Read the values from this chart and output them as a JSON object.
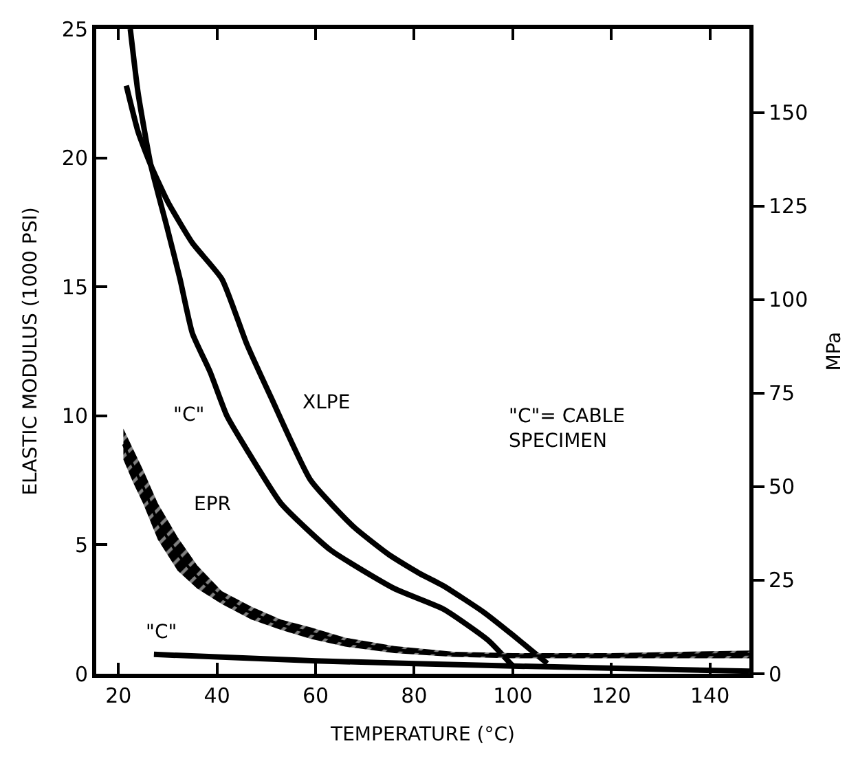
{
  "chart_data": {
    "type": "line",
    "xlabel": "TEMPERATURE (°C)",
    "ylabel": "ELASTIC MODULUS (1000 PSI)",
    "y2label": "MPa",
    "xlim": [
      15.5,
      148
    ],
    "xticks": [
      20,
      40,
      60,
      80,
      100,
      120,
      140
    ],
    "ylim": [
      0,
      25
    ],
    "yticks": [
      0,
      5,
      10,
      15,
      20,
      25
    ],
    "y2lim": [
      0,
      172.4
    ],
    "y2ticks": [
      0,
      25,
      50,
      75,
      100,
      125,
      150
    ],
    "legend": false,
    "marker": "none",
    "line_style": "solid",
    "series": [
      {
        "name": "\"C\"",
        "color": "#000000",
        "x": [
          22.4,
          24,
          26.6,
          30,
          32.5,
          35,
          38.6,
          42,
          46,
          53,
          63,
          76,
          86,
          95,
          100
        ],
        "values": [
          25,
          22.5,
          19.7,
          17.2,
          15.3,
          13.2,
          11.7,
          10,
          8.7,
          6.6,
          4.8,
          3.3,
          2.5,
          1.3,
          0.3
        ]
      },
      {
        "name": "XLPE",
        "color": "#000000",
        "x": [
          21.6,
          24,
          26.6,
          30,
          35,
          41,
          46,
          51,
          59,
          67.7,
          75,
          81,
          86,
          94,
          100,
          107
        ],
        "values": [
          22.8,
          21,
          19.7,
          18.3,
          16.7,
          15.3,
          12.8,
          10.7,
          7.5,
          5.7,
          4.6,
          3.9,
          3.4,
          2.4,
          1.5,
          0.4
        ]
      },
      {
        "name": "EPR",
        "color": "#000000",
        "x": [
          21,
          23,
          25,
          28,
          32,
          36,
          41,
          47,
          53,
          59,
          66,
          76,
          88,
          100,
          120,
          148
        ],
        "values": [
          8.9,
          8.05,
          7.25,
          5.9,
          4.65,
          3.75,
          2.95,
          2.35,
          1.9,
          1.58,
          1.23,
          0.94,
          0.75,
          0.7,
          0.7,
          0.75
        ],
        "lower": [
          8.3,
          7.4,
          6.6,
          5.2,
          4.0,
          3.3,
          2.7,
          2.1,
          1.7,
          1.35,
          1.05,
          0.8,
          0.65,
          0.6,
          0.6,
          0.6
        ],
        "upper": [
          9.5,
          8.7,
          7.9,
          6.6,
          5.3,
          4.2,
          3.2,
          2.6,
          2.1,
          1.8,
          1.4,
          1.07,
          0.85,
          0.8,
          0.8,
          0.9
        ]
      },
      {
        "name": "\"C\"",
        "color": "#000000",
        "x": [
          27.2,
          60,
          100,
          148
        ],
        "values": [
          0.75,
          0.5,
          0.3,
          0.1
        ]
      }
    ],
    "annotations": [
      "\"C\"= CABLE\nSPECIMEN"
    ]
  }
}
